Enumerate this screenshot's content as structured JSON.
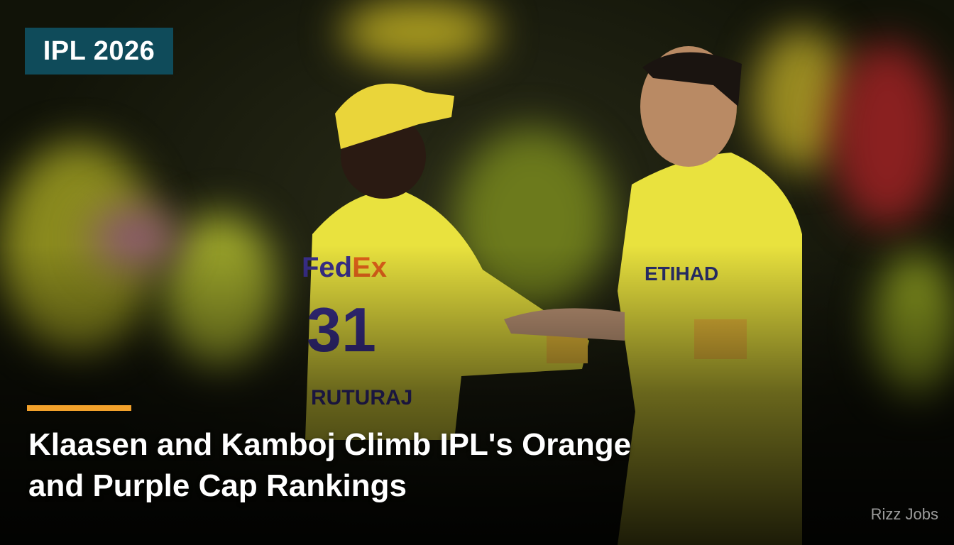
{
  "badge": {
    "label": "IPL 2026",
    "color": "#0f4b5a"
  },
  "accent_color": "#f2a12b",
  "headline": {
    "line1": "Klaasen and Kamboj Climb IPL's Orange",
    "line2": "and Purple Cap Rankings"
  },
  "watermark": "Rizz Jobs",
  "photo": {
    "jersey_left": {
      "sponsor": "FedEx",
      "number": "31",
      "name": "RUTURAJ"
    },
    "jersey_right": {
      "sponsor": "ETIHAD"
    }
  }
}
